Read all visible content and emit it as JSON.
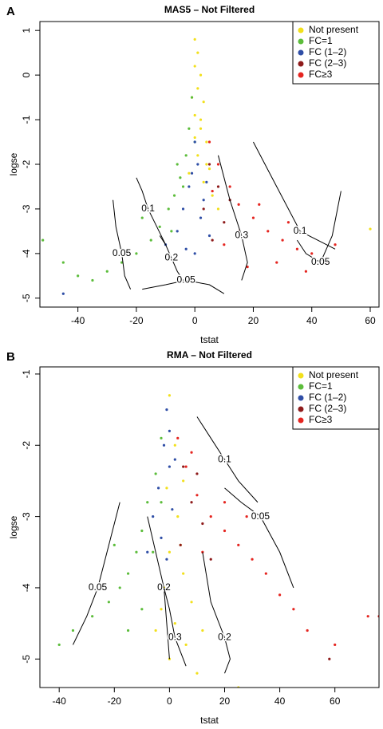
{
  "chart_data": [
    {
      "type": "scatter",
      "panel": "A",
      "title": "MAS5 – Not Filtered",
      "x_label": "tstat",
      "y_label": "logse",
      "xlim": [
        -53,
        63
      ],
      "ylim": [
        -5.2,
        1.2
      ],
      "xticks": [
        -40,
        -20,
        0,
        20,
        40,
        60
      ],
      "yticks": [
        -5,
        -4,
        -3,
        -2,
        -1,
        0,
        1
      ],
      "legend": "top-right",
      "series": [
        {
          "name": "Not present",
          "color": "#f2e01c",
          "x": [
            0,
            1,
            0,
            2,
            1,
            3,
            0,
            2,
            4,
            1,
            5,
            3,
            6,
            -2,
            8,
            60,
            2,
            -1,
            4,
            0
          ],
          "values": [
            0.8,
            0.5,
            0.2,
            0,
            -0.3,
            -0.6,
            -0.9,
            -1.2,
            -1.5,
            -1.8,
            -2.1,
            -2.4,
            -2.7,
            -2.2,
            -3,
            -3.45,
            -1,
            -0.5,
            -2,
            -1.4
          ]
        },
        {
          "name": "FC=1",
          "color": "#5cbd3b",
          "x": [
            -1,
            -2,
            -3,
            -5,
            -7,
            -9,
            -12,
            -15,
            -20,
            -25,
            -30,
            -35,
            -52,
            -45,
            -4,
            -8,
            0,
            -6,
            -18,
            -40
          ],
          "values": [
            -0.5,
            -1.2,
            -1.8,
            -2.3,
            -2.7,
            -3,
            -3.4,
            -3.7,
            -4,
            -4.2,
            -4.4,
            -4.6,
            -3.7,
            -4.2,
            -2.5,
            -3.5,
            -1.5,
            -2,
            -3.2,
            -4.5
          ]
        },
        {
          "name": "FC (1–2)",
          "color": "#2f4ea6",
          "x": [
            0,
            1,
            -2,
            3,
            -4,
            2,
            -6,
            5,
            0,
            -10,
            -45,
            -1,
            4,
            -3
          ],
          "values": [
            -1.5,
            -2,
            -2.5,
            -2.8,
            -3,
            -3.2,
            -3.5,
            -3.6,
            -4,
            -3.8,
            -4.9,
            -2.2,
            -2.4,
            -3.9
          ]
        },
        {
          "name": "FC (2–3)",
          "color": "#8e1b1b",
          "x": [
            5,
            8,
            3,
            10,
            12,
            6,
            15,
            45
          ],
          "values": [
            -2,
            -2.5,
            -3,
            -3.3,
            -2.8,
            -3.7,
            -3.5,
            -4.2
          ]
        },
        {
          "name": "FC≥3",
          "color": "#e52520",
          "x": [
            5,
            8,
            12,
            15,
            20,
            25,
            30,
            35,
            40,
            45,
            10,
            18,
            28,
            48,
            22,
            6,
            32,
            38
          ],
          "values": [
            -1.5,
            -2,
            -2.5,
            -2.9,
            -3.2,
            -3.5,
            -3.7,
            -3.9,
            -4,
            -4.1,
            -3.8,
            -4.3,
            -4.2,
            -3.8,
            -2.9,
            -2.6,
            -3.3,
            -4.4
          ]
        }
      ],
      "contours": [
        {
          "level": 0.05,
          "x": [
            -28,
            -27,
            -25,
            -24,
            -22
          ],
          "y": [
            -2.8,
            -3.4,
            -4,
            -4.5,
            -4.8
          ]
        },
        {
          "level": 0.1,
          "x": [
            -20,
            -18,
            -16,
            -13,
            -10
          ],
          "y": [
            -2.3,
            -2.6,
            -3,
            -3.4,
            -3.8
          ]
        },
        {
          "level": 0.2,
          "x": [
            -12,
            -10,
            -8,
            -6,
            -4
          ],
          "y": [
            -3.6,
            -3.8,
            -4.1,
            -4.4,
            -4.6
          ]
        },
        {
          "level": 0.05,
          "x": [
            -18,
            -10,
            -3,
            5,
            10
          ],
          "y": [
            -4.8,
            -4.7,
            -4.6,
            -4.7,
            -4.9
          ]
        },
        {
          "level": 0.1,
          "x": [
            20,
            28,
            36,
            42,
            48
          ],
          "y": [
            -1.5,
            -2.5,
            -3.5,
            -3.7,
            -3.9
          ]
        },
        {
          "level": 0.05,
          "x": [
            35,
            38,
            43,
            47,
            50
          ],
          "y": [
            -3.7,
            -4,
            -4.2,
            -3.6,
            -2.6
          ]
        },
        {
          "level": 0.3,
          "x": [
            8,
            12,
            16,
            18,
            16
          ],
          "y": [
            -1.8,
            -2.8,
            -3.6,
            -4.2,
            -4.6
          ]
        }
      ]
    },
    {
      "type": "scatter",
      "panel": "B",
      "title": "RMA – Not Filtered",
      "x_label": "tstat",
      "y_label": "logse",
      "xlim": [
        -47,
        76
      ],
      "ylim": [
        -5.4,
        -0.9
      ],
      "xticks": [
        -40,
        -20,
        0,
        20,
        40,
        60
      ],
      "yticks": [
        -5,
        -4,
        -3,
        -2,
        -1
      ],
      "legend": "top-right",
      "series": [
        {
          "name": "Not present",
          "color": "#f2e01c",
          "x": [
            0,
            2,
            5,
            3,
            0,
            5,
            -2,
            8,
            2,
            -5,
            6,
            0,
            12,
            25,
            10,
            -3,
            4,
            -1
          ],
          "values": [
            -1.3,
            -2,
            -2.5,
            -3,
            -3.5,
            -3.8,
            -4,
            -4.2,
            -4.5,
            -4.6,
            -4.8,
            -5,
            -4.6,
            -5.4,
            -5.2,
            -4.3,
            -3.4,
            -2.6
          ]
        },
        {
          "name": "FC=1",
          "color": "#5cbd3b",
          "x": [
            -3,
            -5,
            -8,
            -10,
            -12,
            -15,
            -18,
            -22,
            -28,
            -35,
            -40,
            -48,
            -6,
            -10,
            -3,
            -20,
            -15
          ],
          "values": [
            -1.9,
            -2.4,
            -2.8,
            -3.2,
            -3.5,
            -3.8,
            -4,
            -4.2,
            -4.4,
            -4.6,
            -4.8,
            -4.95,
            -3.5,
            -4.3,
            -2.8,
            -3.4,
            -4.6
          ]
        },
        {
          "name": "FC (1–2)",
          "color": "#2f4ea6",
          "x": [
            -1,
            -2,
            0,
            -4,
            1,
            -6,
            -3,
            2,
            -8,
            -1,
            0
          ],
          "values": [
            -1.5,
            -2,
            -2.3,
            -2.6,
            -2.9,
            -3,
            -3.3,
            -2.2,
            -3.5,
            -3.6,
            -1.8
          ]
        },
        {
          "name": "FC (2–3)",
          "color": "#8e1b1b",
          "x": [
            5,
            8,
            12,
            4,
            15,
            58,
            10
          ],
          "values": [
            -2.3,
            -2.8,
            -3.1,
            -3.4,
            -3.6,
            -5,
            -2.4
          ]
        },
        {
          "name": "FC≥3",
          "color": "#e52520",
          "x": [
            3,
            6,
            10,
            15,
            20,
            25,
            30,
            35,
            40,
            45,
            60,
            72,
            76,
            20,
            12,
            28,
            8,
            50
          ],
          "values": [
            -1.9,
            -2.3,
            -2.7,
            -3,
            -3.2,
            -3.4,
            -3.6,
            -3.8,
            -4.1,
            -4.3,
            -4.8,
            -4.4,
            -4.4,
            -2.8,
            -3.5,
            -3,
            -2.1,
            -4.6
          ]
        }
      ],
      "contours": [
        {
          "level": 0.1,
          "x": [
            10,
            15,
            20,
            25,
            32
          ],
          "y": [
            -1.6,
            -1.9,
            -2.2,
            -2.5,
            -2.8
          ]
        },
        {
          "level": 0.05,
          "x": [
            20,
            26,
            33,
            40,
            45
          ],
          "y": [
            -2.6,
            -2.8,
            -3,
            -3.5,
            -4
          ]
        },
        {
          "level": 0.05,
          "x": [
            -35,
            -30,
            -26,
            -22,
            -18
          ],
          "y": [
            -4.8,
            -4.4,
            -4,
            -3.4,
            -2.8
          ]
        },
        {
          "level": 0.2,
          "x": [
            -8,
            -5,
            -2,
            -1,
            0
          ],
          "y": [
            -3,
            -3.5,
            -4,
            -4.5,
            -5
          ]
        },
        {
          "level": 0.3,
          "x": [
            -2,
            0,
            2,
            4,
            6
          ],
          "y": [
            -4,
            -4.3,
            -4.7,
            -4.9,
            -5.1
          ]
        },
        {
          "level": 0.2,
          "x": [
            12,
            15,
            20,
            22,
            20
          ],
          "y": [
            -3.5,
            -4.2,
            -4.7,
            -5,
            -5.2
          ]
        }
      ]
    }
  ]
}
